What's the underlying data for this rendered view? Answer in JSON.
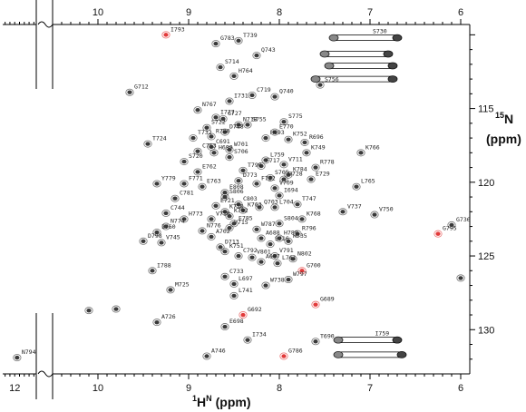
{
  "chart_data": {
    "type": "scatter",
    "title": "",
    "xlabel": "1HN (ppm)",
    "xlabel_main": "H",
    "xlabel_sup": "1",
    "xlabel_sup2": "N",
    "xlabel_units": "(ppm)",
    "ylabel": "15N (ppm)",
    "ylabel_sup": "15",
    "ylabel_main": "N",
    "ylabel_units": "(ppm)",
    "x_reversed": true,
    "xlim_main": [
      10.5,
      5.9
    ],
    "xlim_inset": [
      12.25,
      11.55
    ],
    "ylim": [
      109.3,
      133.0
    ],
    "x_ticks_main": [
      "10",
      "9",
      "8",
      "7",
      "6"
    ],
    "x_ticks_inset": [
      "12"
    ],
    "y_ticks": [
      "115",
      "120",
      "125",
      "130"
    ],
    "grid": false,
    "colors": {
      "positive": "#3a3a3a",
      "negative": "#e23a3a",
      "frame": "#000000"
    },
    "series": [
      {
        "points": [
          {
            "x": 8.45,
            "y": 110.4,
            "label": "T739"
          },
          {
            "x": 8.7,
            "y": 110.6,
            "label": "G783"
          },
          {
            "x": 8.25,
            "y": 111.4,
            "label": "Q743"
          },
          {
            "x": 8.65,
            "y": 112.2,
            "label": "S714"
          },
          {
            "x": 8.5,
            "y": 112.8,
            "label": "H764"
          },
          {
            "x": 7.55,
            "y": 113.4,
            "label": "S756"
          },
          {
            "x": 9.65,
            "y": 113.9,
            "label": "G712"
          },
          {
            "x": 8.3,
            "y": 114.1,
            "label": "C719"
          },
          {
            "x": 8.05,
            "y": 114.2,
            "label": "Q740"
          },
          {
            "x": 8.55,
            "y": 114.5,
            "label": "I731"
          },
          {
            "x": 8.9,
            "y": 115.1,
            "label": "N767"
          },
          {
            "x": 8.7,
            "y": 115.6,
            "label": "I777"
          },
          {
            "x": 8.62,
            "y": 115.7,
            "label": "G727"
          },
          {
            "x": 8.45,
            "y": 116.1,
            "label": "N718"
          },
          {
            "x": 8.35,
            "y": 116.1,
            "label": "S755"
          },
          {
            "x": 7.95,
            "y": 115.9,
            "label": "S775"
          },
          {
            "x": 8.8,
            "y": 116.3,
            "label": "S722"
          },
          {
            "x": 8.6,
            "y": 116.6,
            "label": "D748"
          },
          {
            "x": 8.95,
            "y": 117.0,
            "label": "T732"
          },
          {
            "x": 8.75,
            "y": 116.9,
            "label": "R780"
          },
          {
            "x": 8.05,
            "y": 116.6,
            "label": "E770"
          },
          {
            "x": 8.15,
            "y": 117.0,
            "label": "H693"
          },
          {
            "x": 7.9,
            "y": 117.1,
            "label": "K752"
          },
          {
            "x": 7.72,
            "y": 117.3,
            "label": "R696"
          },
          {
            "x": 9.45,
            "y": 117.4,
            "label": "T724"
          },
          {
            "x": 8.75,
            "y": 117.6,
            "label": "C691"
          },
          {
            "x": 8.55,
            "y": 117.8,
            "label": "W701"
          },
          {
            "x": 8.9,
            "y": 117.9,
            "label": "C753"
          },
          {
            "x": 8.72,
            "y": 118.0,
            "label": "H699"
          },
          {
            "x": 7.7,
            "y": 118.0,
            "label": "K749"
          },
          {
            "x": 7.1,
            "y": 118.0,
            "label": "K766"
          },
          {
            "x": 8.55,
            "y": 118.3,
            "label": "S706"
          },
          {
            "x": 8.15,
            "y": 118.5,
            "label": "L759"
          },
          {
            "x": 9.05,
            "y": 118.6,
            "label": "S720"
          },
          {
            "x": 7.95,
            "y": 118.8,
            "label": "V711"
          },
          {
            "x": 8.2,
            "y": 118.9,
            "label": "F717"
          },
          {
            "x": 7.6,
            "y": 119.0,
            "label": "R778"
          },
          {
            "x": 8.4,
            "y": 119.2,
            "label": "T790"
          },
          {
            "x": 8.9,
            "y": 119.3,
            "label": "E762"
          },
          {
            "x": 7.9,
            "y": 119.5,
            "label": "K784"
          },
          {
            "x": 8.1,
            "y": 119.7,
            "label": "S705"
          },
          {
            "x": 7.95,
            "y": 119.8,
            "label": "H728"
          },
          {
            "x": 7.65,
            "y": 119.8,
            "label": "E729"
          },
          {
            "x": 8.45,
            "y": 119.9,
            "label": "D773"
          },
          {
            "x": 9.35,
            "y": 120.1,
            "label": "Y779"
          },
          {
            "x": 9.05,
            "y": 120.1,
            "label": "F771"
          },
          {
            "x": 8.25,
            "y": 120.1,
            "label": "F722"
          },
          {
            "x": 8.85,
            "y": 120.3,
            "label": "E763"
          },
          {
            "x": 8.05,
            "y": 120.4,
            "label": "V709"
          },
          {
            "x": 7.15,
            "y": 120.3,
            "label": "L765"
          },
          {
            "x": 8.6,
            "y": 120.7,
            "label": "E808"
          },
          {
            "x": 8.0,
            "y": 120.9,
            "label": "I694"
          },
          {
            "x": 8.6,
            "y": 121.0,
            "label": "S806"
          },
          {
            "x": 9.15,
            "y": 121.1,
            "label": "C781"
          },
          {
            "x": 7.8,
            "y": 121.5,
            "label": "T747"
          },
          {
            "x": 8.45,
            "y": 121.5,
            "label": "C803"
          },
          {
            "x": 8.7,
            "y": 121.6,
            "label": "E721"
          },
          {
            "x": 8.22,
            "y": 121.7,
            "label": "Q703"
          },
          {
            "x": 8.05,
            "y": 121.7,
            "label": "L704"
          },
          {
            "x": 8.4,
            "y": 121.9,
            "label": "K763"
          },
          {
            "x": 8.6,
            "y": 122.0,
            "label": "K750"
          },
          {
            "x": 9.25,
            "y": 122.1,
            "label": "C744"
          },
          {
            "x": 7.3,
            "y": 122.0,
            "label": "V737"
          },
          {
            "x": 6.95,
            "y": 122.2,
            "label": "V750"
          },
          {
            "x": 8.55,
            "y": 122.3,
            "label": "K782"
          },
          {
            "x": 9.05,
            "y": 122.5,
            "label": "H773"
          },
          {
            "x": 8.75,
            "y": 122.5,
            "label": "V710"
          },
          {
            "x": 7.75,
            "y": 122.5,
            "label": "K768"
          },
          {
            "x": 8.5,
            "y": 122.8,
            "label": "E785"
          },
          {
            "x": 8.0,
            "y": 122.8,
            "label": "S804"
          },
          {
            "x": 9.25,
            "y": 123.0,
            "label": "N774"
          },
          {
            "x": 8.55,
            "y": 123.1,
            "label": "V715"
          },
          {
            "x": 8.25,
            "y": 123.2,
            "label": "W787"
          },
          {
            "x": 8.85,
            "y": 123.3,
            "label": "N776"
          },
          {
            "x": 9.35,
            "y": 123.4,
            "label": "I760"
          },
          {
            "x": 7.8,
            "y": 123.5,
            "label": "R796"
          },
          {
            "x": 8.75,
            "y": 123.7,
            "label": "A702"
          },
          {
            "x": 8.2,
            "y": 123.8,
            "label": "A688"
          },
          {
            "x": 8.0,
            "y": 123.8,
            "label": "H789"
          },
          {
            "x": 9.5,
            "y": 124.0,
            "label": "D798"
          },
          {
            "x": 9.3,
            "y": 124.1,
            "label": "V745"
          },
          {
            "x": 8.1,
            "y": 124.2,
            "label": "S716"
          },
          {
            "x": 7.9,
            "y": 124.0,
            "label": "H735"
          },
          {
            "x": 8.65,
            "y": 124.4,
            "label": "D713"
          },
          {
            "x": 8.6,
            "y": 124.7,
            "label": "K751"
          },
          {
            "x": 6.25,
            "y": 123.5,
            "label": "G795",
            "sign": "negative"
          },
          {
            "x": 6.1,
            "y": 122.9,
            "label": "G736"
          },
          {
            "x": 8.45,
            "y": 125.0,
            "label": "C792"
          },
          {
            "x": 8.3,
            "y": 125.1,
            "label": "V801"
          },
          {
            "x": 8.05,
            "y": 125.0,
            "label": "V791"
          },
          {
            "x": 7.85,
            "y": 125.2,
            "label": "N802"
          },
          {
            "x": 8.2,
            "y": 125.4,
            "label": "A687"
          },
          {
            "x": 8.02,
            "y": 125.5,
            "label": "L761"
          },
          {
            "x": 9.4,
            "y": 126.0,
            "label": "I788"
          },
          {
            "x": 7.75,
            "y": 126.0,
            "label": "G700",
            "sign": "negative"
          },
          {
            "x": 8.6,
            "y": 126.4,
            "label": "C733"
          },
          {
            "x": 7.9,
            "y": 126.6,
            "label": "W797"
          },
          {
            "x": 8.5,
            "y": 126.9,
            "label": "L697"
          },
          {
            "x": 8.15,
            "y": 127.0,
            "label": "W738"
          },
          {
            "x": 6.0,
            "y": 126.5,
            "label": ""
          },
          {
            "x": 9.2,
            "y": 127.3,
            "label": "M725"
          },
          {
            "x": 8.5,
            "y": 127.7,
            "label": "L741"
          },
          {
            "x": 7.6,
            "y": 128.3,
            "label": "G689",
            "sign": "negative"
          },
          {
            "x": 10.1,
            "y": 128.7,
            "label": ""
          },
          {
            "x": 9.8,
            "y": 128.6,
            "label": ""
          },
          {
            "x": 8.4,
            "y": 129.0,
            "label": "G692",
            "sign": "negative"
          },
          {
            "x": 9.35,
            "y": 129.5,
            "label": "A726"
          },
          {
            "x": 8.6,
            "y": 129.8,
            "label": "E698"
          },
          {
            "x": 8.35,
            "y": 130.7,
            "label": "I734"
          },
          {
            "x": 7.6,
            "y": 130.8,
            "label": "T690"
          },
          {
            "x": 8.8,
            "y": 131.8,
            "label": "A746"
          },
          {
            "x": 7.95,
            "y": 131.8,
            "label": "G786",
            "sign": "negative"
          },
          {
            "x": 9.25,
            "y": 110.0,
            "label": "I793",
            "sign": "negative"
          },
          {
            "x": 11.95,
            "y": 131.9,
            "label": "N794"
          }
        ]
      }
    ],
    "side_chain_pairs": [
      {
        "label": "S730",
        "y": 110.2,
        "x_left": 7.4,
        "x_right": 6.7
      },
      {
        "label": "",
        "y": 111.3,
        "x_left": 7.5,
        "x_right": 6.8
      },
      {
        "label": "",
        "y": 112.1,
        "x_left": 7.45,
        "x_right": 6.75
      },
      {
        "label": "",
        "y": 113.0,
        "x_left": 7.6,
        "x_right": 6.75
      },
      {
        "label": "I759",
        "y": 130.7,
        "x_left": 7.35,
        "x_right": 6.7
      },
      {
        "label": "",
        "y": 131.7,
        "x_left": 7.35,
        "x_right": 6.65
      }
    ]
  }
}
